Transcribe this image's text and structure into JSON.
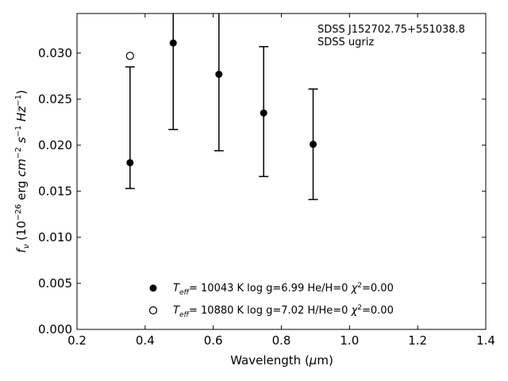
{
  "chart_data": {
    "type": "scatter",
    "title": "",
    "xlabel": "Wavelength (μm)",
    "ylabel": "fν (10⁻²⁶ erg cm⁻² s⁻¹ Hz⁻¹)",
    "xlim": [
      0.2,
      1.4
    ],
    "ylim": [
      0.0,
      0.0343
    ],
    "x_ticks": [
      "0.2",
      "0.4",
      "0.6",
      "0.8",
      "1.0",
      "1.2",
      "1.4"
    ],
    "y_ticks": [
      "0.000",
      "0.005",
      "0.010",
      "0.015",
      "0.020",
      "0.025",
      "0.030"
    ],
    "annotation": [
      "SDSS J152702.75+551038.8",
      "SDSS ugriz"
    ],
    "legend_position": "lower-center",
    "series": [
      {
        "marker": "filled-circle",
        "label": "T_eff= 10043 K  log g=6.99  He/H=0  χ²=0.00",
        "points": [
          {
            "x": 0.3557,
            "y": 0.0181,
            "yerr": [
              0.0153,
              0.0285
            ]
          },
          {
            "x": 0.4825,
            "y": 0.0311,
            "yerr": [
              0.0217,
              0.0352
            ]
          },
          {
            "x": 0.6166,
            "y": 0.0277,
            "yerr": [
              0.0194,
              0.0353
            ]
          },
          {
            "x": 0.748,
            "y": 0.0235,
            "yerr": [
              0.0166,
              0.0307
            ]
          },
          {
            "x": 0.8932,
            "y": 0.0201,
            "yerr": [
              0.0141,
              0.0261
            ]
          }
        ]
      },
      {
        "marker": "open-circle",
        "label": "T_eff= 10880 K  log g=7.02  H/He=0  χ²=0.00",
        "points": [
          {
            "x": 0.3557,
            "y": 0.0297
          }
        ]
      }
    ]
  }
}
